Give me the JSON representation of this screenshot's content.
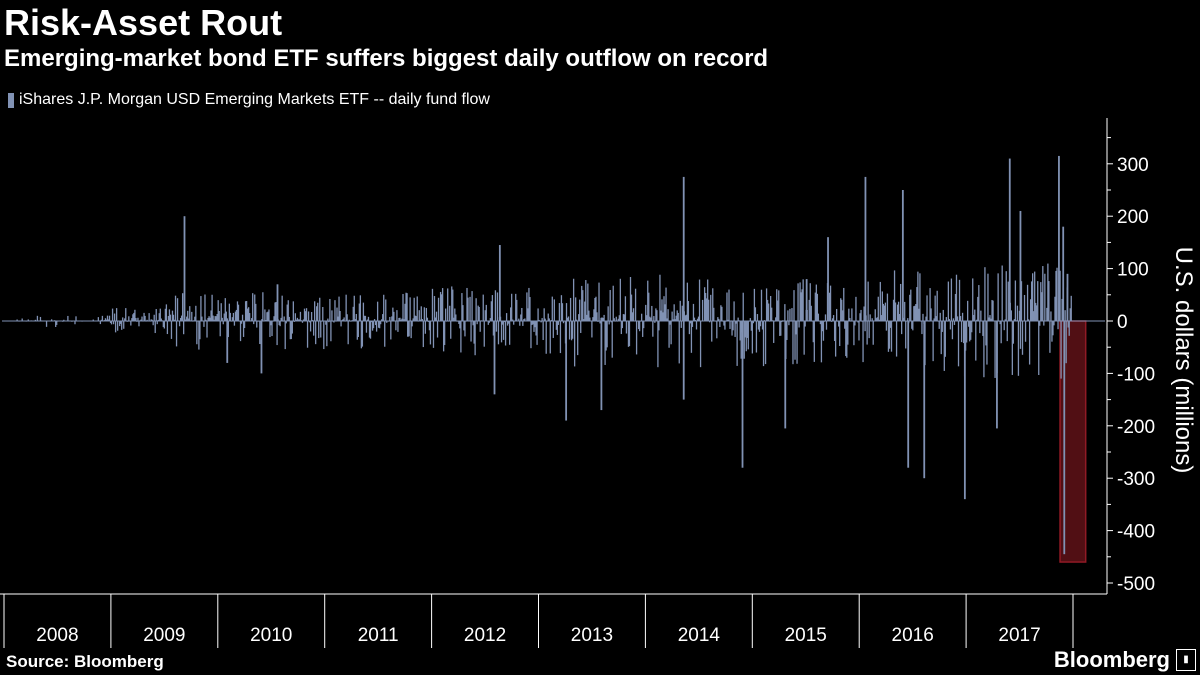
{
  "header": {
    "title": "Risk-Asset Rout",
    "subtitle": "Emerging-market bond ETF suffers biggest daily outflow on record"
  },
  "footer": {
    "source": "Source: Bloomberg",
    "brand": "Bloomberg",
    "brand_icon": "▮"
  },
  "colors": {
    "series": "#8192b4",
    "highlight_fill": "#5a1117",
    "highlight_border": "#a01d2a",
    "axis": "#ffffff",
    "grid": "#555555"
  },
  "chart_data": {
    "type": "bar",
    "title": "Risk-Asset Rout",
    "subtitle": "Emerging-market bond ETF suffers biggest daily outflow on record",
    "legend": [
      "iShares J.P. Morgan USD Emerging Markets ETF -- daily fund flow"
    ],
    "xlabel": "",
    "ylabel": "U.S. dollars (millions)",
    "ylim": [
      -520,
      380
    ],
    "y_ticks": [
      300,
      200,
      100,
      0,
      -100,
      -200,
      -300,
      -400,
      -500
    ],
    "y_tick_labels": [
      "300",
      "200",
      "100",
      "0",
      "-100",
      "-200",
      "-300",
      "-400",
      "-500"
    ],
    "x_tick_labels": [
      "2008",
      "2009",
      "2010",
      "2011",
      "2012",
      "2013",
      "2014",
      "2015",
      "2016",
      "2017"
    ],
    "xlim": [
      2008.0,
      2018.25
    ],
    "series": [
      {
        "name": "iShares J.P. Morgan USD Emerging Markets ETF -- daily fund flow",
        "spikes": [
          {
            "x": 2009.68,
            "value": 200
          },
          {
            "x": 2010.08,
            "value": -80
          },
          {
            "x": 2010.4,
            "value": -100
          },
          {
            "x": 2010.55,
            "value": 70
          },
          {
            "x": 2011.77,
            "value": -30
          },
          {
            "x": 2012.63,
            "value": 145
          },
          {
            "x": 2012.58,
            "value": -140
          },
          {
            "x": 2013.25,
            "value": -190
          },
          {
            "x": 2013.58,
            "value": -170
          },
          {
            "x": 2014.35,
            "value": 275
          },
          {
            "x": 2014.35,
            "value": -150
          },
          {
            "x": 2014.9,
            "value": -280
          },
          {
            "x": 2015.3,
            "value": -205
          },
          {
            "x": 2015.5,
            "value": 80
          },
          {
            "x": 2015.7,
            "value": 160
          },
          {
            "x": 2016.05,
            "value": 275
          },
          {
            "x": 2016.4,
            "value": 250
          },
          {
            "x": 2016.45,
            "value": -280
          },
          {
            "x": 2016.6,
            "value": -300
          },
          {
            "x": 2016.98,
            "value": -340
          },
          {
            "x": 2017.28,
            "value": -205
          },
          {
            "x": 2017.4,
            "value": 310
          },
          {
            "x": 2017.5,
            "value": 210
          },
          {
            "x": 2017.86,
            "value": 315
          },
          {
            "x": 2017.9,
            "value": 180
          },
          {
            "x": 2017.94,
            "value": 90
          },
          {
            "x": 2017.91,
            "value": -445
          }
        ],
        "record_outflow": -445
      }
    ],
    "highlight": {
      "x_start": 2017.86,
      "x_end": 2018.1,
      "y_start": 0,
      "y_end": -460
    }
  }
}
